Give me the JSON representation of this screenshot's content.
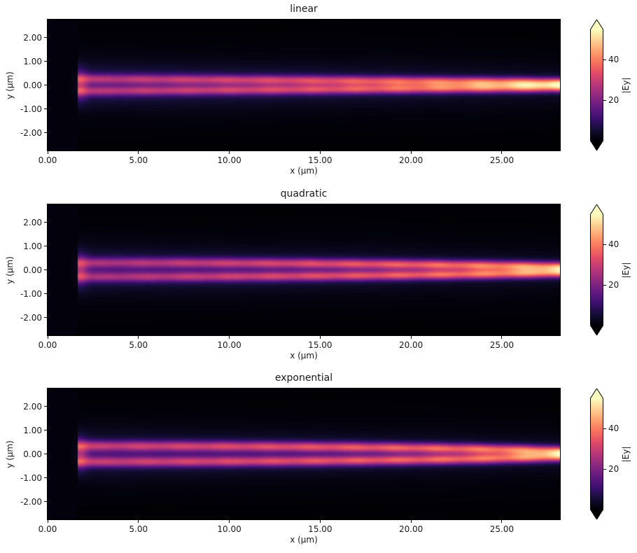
{
  "figure": {
    "background": "#ffffff",
    "text_color": "#1a1a1a"
  },
  "colormap_stops": [
    [
      "0.0",
      "#000004"
    ],
    [
      "0.1",
      "#140e36"
    ],
    [
      "0.2",
      "#3b0f70"
    ],
    [
      "0.3",
      "#641a80"
    ],
    [
      "0.4",
      "#8c2981"
    ],
    [
      "0.5",
      "#b73779"
    ],
    [
      "0.6",
      "#de4968"
    ],
    [
      "0.7",
      "#f7705c"
    ],
    [
      "0.8",
      "#fe9f6d"
    ],
    [
      "0.9",
      "#fecf92"
    ],
    [
      "1.0",
      "#fcfdbf"
    ]
  ],
  "chart_data": [
    {
      "type": "heatmap",
      "title": "linear",
      "xlabel": "x (µm)",
      "ylabel": "y (µm)",
      "xlim": [
        0,
        28.2
      ],
      "ylim": [
        -2.75,
        2.75
      ],
      "xticks": [
        "0.00",
        "5.00",
        "10.00",
        "15.00",
        "20.00",
        "25.00"
      ],
      "xtick_values": [
        0,
        5,
        10,
        15,
        20,
        25
      ],
      "yticks": [
        "2.00",
        "1.00",
        "0.00",
        "-1.00",
        "-2.00"
      ],
      "ytick_values": [
        2,
        1,
        0,
        -1,
        -2
      ],
      "colormap": "magma",
      "colorbar": {
        "label": "|Ey|",
        "vmin": 0,
        "vmax": 55,
        "tick_values": [
          40,
          20
        ],
        "tick_labels": [
          "40",
          "20"
        ],
        "extend": "both"
      },
      "field_model": {
        "x_start": 1.65,
        "sigma": 0.14,
        "sep0": 0.26,
        "sep1": 0.11,
        "amp0": 0.6,
        "amp1": 1.3,
        "easing": "linear"
      }
    },
    {
      "type": "heatmap",
      "title": "quadratic",
      "xlabel": "x (µm)",
      "ylabel": "y (µm)",
      "xlim": [
        0,
        28.2
      ],
      "ylim": [
        -2.75,
        2.75
      ],
      "xticks": [
        "0.00",
        "5.00",
        "10.00",
        "15.00",
        "20.00",
        "25.00"
      ],
      "xtick_values": [
        0,
        5,
        10,
        15,
        20,
        25
      ],
      "yticks": [
        "2.00",
        "1.00",
        "0.00",
        "-1.00",
        "-2.00"
      ],
      "ytick_values": [
        2,
        1,
        0,
        -1,
        -2
      ],
      "colormap": "magma",
      "colorbar": {
        "label": "|Ey|",
        "vmin": 0,
        "vmax": 55,
        "tick_values": [
          40,
          20
        ],
        "tick_labels": [
          "40",
          "20"
        ],
        "extend": "both"
      },
      "field_model": {
        "x_start": 1.65,
        "sigma": 0.145,
        "sep0": 0.3,
        "sep1": 0.13,
        "amp0": 0.55,
        "amp1": 1.35,
        "easing": "quadratic"
      }
    },
    {
      "type": "heatmap",
      "title": "exponential",
      "xlabel": "x (µm)",
      "ylabel": "y (µm)",
      "xlim": [
        0,
        28.2
      ],
      "ylim": [
        -2.75,
        2.75
      ],
      "xticks": [
        "0.00",
        "5.00",
        "10.00",
        "15.00",
        "20.00",
        "25.00"
      ],
      "xtick_values": [
        0,
        5,
        10,
        15,
        20,
        25
      ],
      "yticks": [
        "2.00",
        "1.00",
        "0.00",
        "-1.00",
        "-2.00"
      ],
      "ytick_values": [
        2,
        1,
        0,
        -1,
        -2
      ],
      "colormap": "magma",
      "colorbar": {
        "label": "|Ey|",
        "vmin": 0,
        "vmax": 55,
        "tick_values": [
          40,
          20
        ],
        "tick_labels": [
          "40",
          "20"
        ],
        "extend": "both"
      },
      "field_model": {
        "x_start": 1.65,
        "sigma": 0.15,
        "sep0": 0.34,
        "sep1": 0.12,
        "amp0": 0.7,
        "amp1": 1.3,
        "easing": "exponential"
      }
    }
  ]
}
